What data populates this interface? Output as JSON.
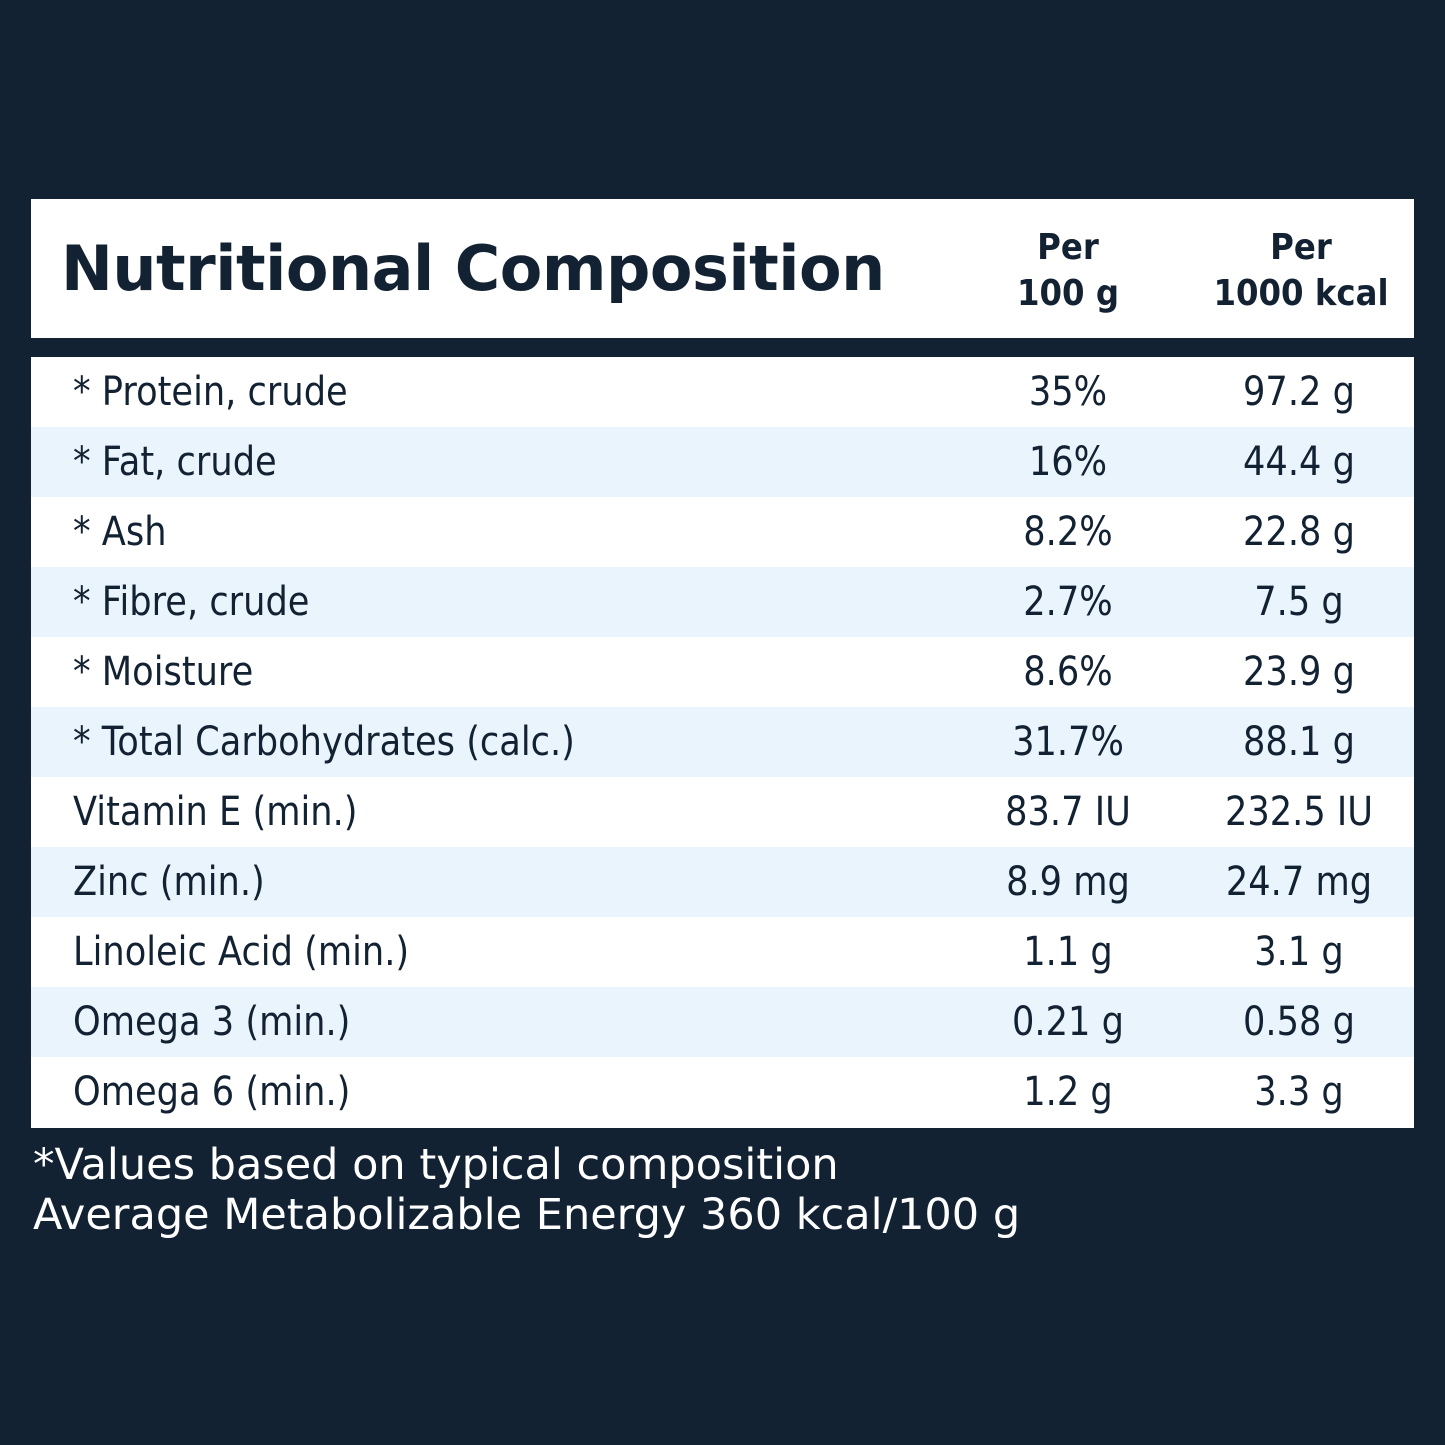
{
  "header": {
    "title": "Nutritional Composition",
    "col1_line1": "Per",
    "col1_line2": "100 g",
    "col2_line1": "Per",
    "col2_line2": "1000 kcal"
  },
  "rows": [
    {
      "name": "* Protein, crude",
      "per_100g": "35%",
      "per_1000kcal": "97.2 g"
    },
    {
      "name": "* Fat, crude",
      "per_100g": "16%",
      "per_1000kcal": "44.4 g"
    },
    {
      "name": "* Ash",
      "per_100g": "8.2%",
      "per_1000kcal": "22.8 g"
    },
    {
      "name": "* Fibre, crude",
      "per_100g": "2.7%",
      "per_1000kcal": "7.5 g"
    },
    {
      "name": "* Moisture",
      "per_100g": "8.6%",
      "per_1000kcal": "23.9 g"
    },
    {
      "name": "* Total Carbohydrates (calc.)",
      "per_100g": "31.7%",
      "per_1000kcal": "88.1 g"
    },
    {
      "name": "Vitamin E (min.)",
      "per_100g": "83.7 IU",
      "per_1000kcal": "232.5 IU"
    },
    {
      "name": "Zinc (min.)",
      "per_100g": "8.9 mg",
      "per_1000kcal": "24.7 mg"
    },
    {
      "name": "Linoleic Acid (min.)",
      "per_100g": "1.1 g",
      "per_1000kcal": "3.1 g"
    },
    {
      "name": "Omega 3 (min.)",
      "per_100g": "0.21 g",
      "per_1000kcal": "0.58 g"
    },
    {
      "name": "Omega 6 (min.)",
      "per_100g": "1.2 g",
      "per_1000kcal": "3.3 g"
    }
  ],
  "footnotes": {
    "line1": "*Values based on typical composition",
    "line2": "Average Metabolizable Energy 360 kcal/100 g"
  },
  "colors": {
    "background": "#132233",
    "panel": "#ffffff",
    "alt_row": "#eaf4fd",
    "text_dark": "#132233",
    "text_light": "#ffffff"
  }
}
